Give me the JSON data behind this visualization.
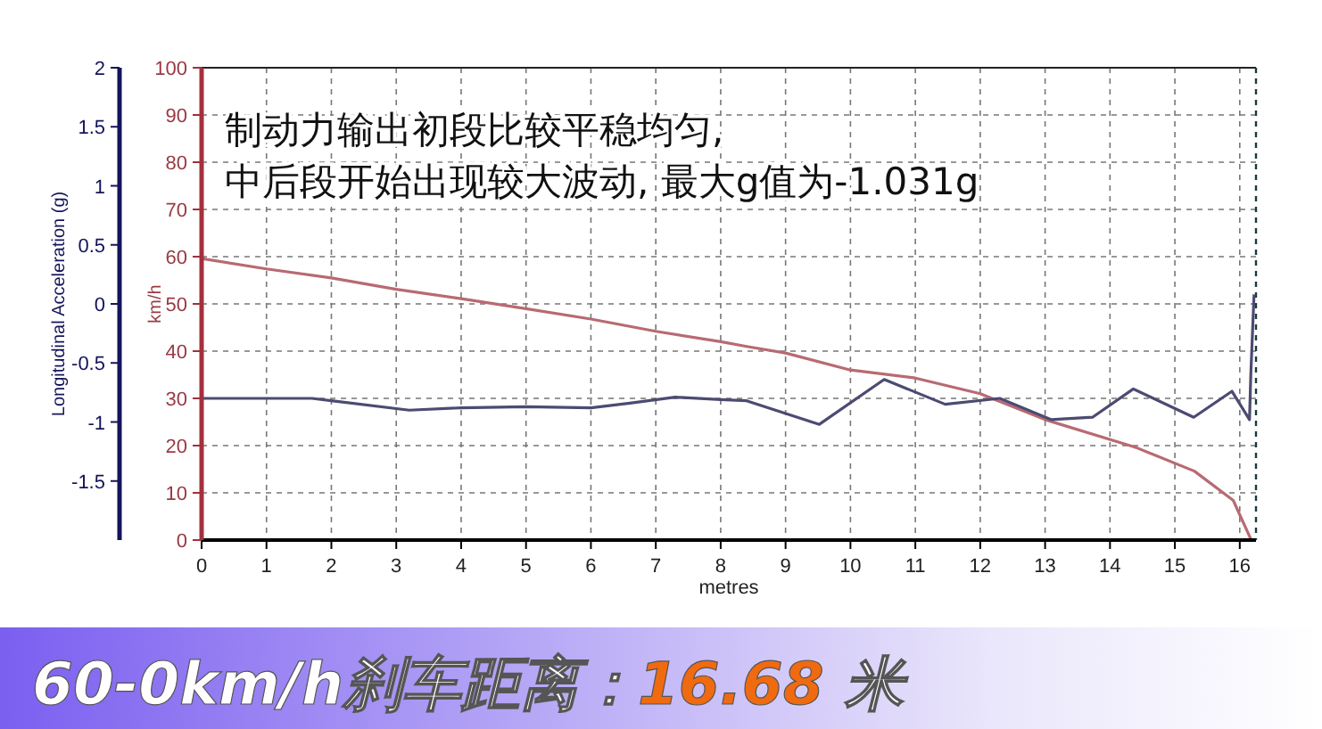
{
  "chart_data": {
    "type": "line",
    "xlabel": "metres",
    "ylabel": "Longitudinal Acceleration (g)",
    "y2label": "km/h",
    "xlim": [
      0,
      16.25
    ],
    "xticks": [
      0,
      1,
      2,
      3,
      4,
      5,
      6,
      7,
      8,
      9,
      10,
      11,
      12,
      13,
      14,
      15,
      16
    ],
    "ylim": [
      -2,
      2
    ],
    "yticks": [
      -1.5,
      -1,
      -0.5,
      0,
      0.5,
      1,
      1.5,
      2
    ],
    "y2lim": [
      0,
      100
    ],
    "y2ticks": [
      0,
      10,
      20,
      30,
      40,
      50,
      60,
      70,
      80,
      90,
      100
    ],
    "grid": true,
    "marker": "none",
    "line_style": "solid",
    "series": [
      {
        "color": "#b86a72",
        "axis": "y2",
        "x": [
          0,
          1,
          2,
          3,
          4,
          5,
          6,
          7,
          8,
          8.4,
          9,
          10,
          11,
          12,
          13,
          14.4,
          15.3,
          15.9,
          16.17
        ],
        "values": [
          59.6,
          57.4,
          55.5,
          53.1,
          51.1,
          49,
          46.8,
          44.2,
          42,
          41,
          39.6,
          36,
          34.3,
          31,
          25.5,
          19.6,
          14.6,
          8.4,
          0.2
        ]
      },
      {
        "color": "#4b4b72",
        "axis": "y",
        "x": [
          0,
          1.7,
          2,
          3.2,
          4,
          5,
          6,
          6.6,
          7.3,
          8,
          8.4,
          9.52,
          10.52,
          11.46,
          12.3,
          13.09,
          13.73,
          14.36,
          15.29,
          15.88,
          16.15,
          16.17,
          16.22
        ],
        "values": [
          -0.8,
          -0.8,
          -0.82,
          -0.9,
          -0.88,
          -0.87,
          -0.88,
          -0.84,
          -0.79,
          -0.81,
          -0.82,
          -1.02,
          -0.64,
          -0.85,
          -0.8,
          -0.98,
          -0.96,
          -0.72,
          -0.96,
          -0.74,
          -0.98,
          -0.6,
          0.08
        ]
      }
    ],
    "annotations": [
      "制动力输出初段比较平稳均匀,\n中后段开始出现较大波动, 最大g值为-1.031g",
      "60-0km/h刹车距离：16.68 米"
    ]
  }
}
